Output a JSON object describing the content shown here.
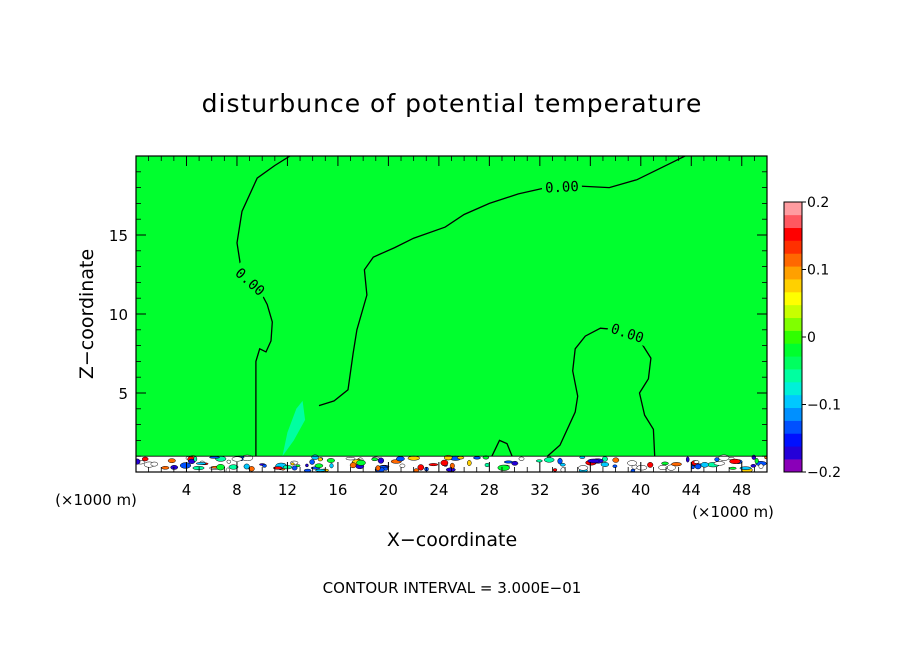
{
  "chart_data": {
    "type": "heatmap",
    "title": "disturbunce of potential temperature",
    "xlabel": "X−coordinate",
    "ylabel": "Z−coordinate",
    "x_unit": "(×1000 m)",
    "z_unit": "(×1000 m)",
    "xlim": [
      0,
      50
    ],
    "ylim": [
      0,
      20
    ],
    "x_ticks": [
      4,
      8,
      12,
      16,
      20,
      24,
      28,
      32,
      36,
      40,
      44,
      48
    ],
    "x_tick_labels": [
      "4",
      "8",
      "12",
      "16",
      "20",
      "24",
      "28",
      "32",
      "36",
      "40",
      "44",
      "48"
    ],
    "y_ticks": [
      5,
      10,
      15
    ],
    "y_tick_labels": [
      "5",
      "10",
      "15"
    ],
    "footer": "CONTOUR INTERVAL = 3.000E−01",
    "background_color": "#00ff2e",
    "colorbar": {
      "range": [
        -0.2,
        0.2
      ],
      "tick_values": [
        -0.2,
        -0.1,
        0,
        0.1,
        0.2
      ],
      "tick_labels": [
        "−0.2",
        "−0.1",
        "0",
        "0.1",
        "0.2"
      ],
      "colors": [
        "#8a00b8",
        "#2400d8",
        "#0010ff",
        "#0050ff",
        "#0090ff",
        "#00c8ff",
        "#00f0d8",
        "#00ffa0",
        "#00ff60",
        "#00ff2e",
        "#30ff00",
        "#80ff00",
        "#c8ff00",
        "#ffff00",
        "#ffd000",
        "#ffa000",
        "#ff6800",
        "#ff3000",
        "#ff0000",
        "#ff5860",
        "#ff9ca0"
      ]
    },
    "contours": [
      {
        "level": 0.0,
        "label": "0.00",
        "x": [
          9.5,
          9.5,
          9.8,
          10.3,
          10.7,
          10.8,
          10.4,
          10.0,
          9.4,
          8.7,
          8.3,
          8.0,
          8.4,
          9.6,
          11.0,
          12.2
        ],
        "y": [
          1.0,
          7.0,
          7.8,
          7.6,
          8.3,
          9.5,
          10.6,
          11.2,
          11.8,
          12.3,
          13.0,
          14.5,
          16.5,
          18.6,
          19.4,
          20.0
        ]
      },
      {
        "level": 0.0,
        "label": "0.00",
        "x": [
          14.5,
          15.7,
          16.8,
          17.2,
          17.5,
          18.3,
          18.1,
          18.8,
          20.5,
          22.0,
          24.5,
          26.0,
          28.0,
          30.3,
          32.5,
          35.0,
          37.5,
          39.7,
          42.5,
          43.5
        ],
        "y": [
          4.2,
          4.5,
          5.2,
          7.5,
          9.0,
          11.2,
          12.8,
          13.6,
          14.2,
          14.8,
          15.5,
          16.3,
          17.0,
          17.6,
          18.0,
          18.1,
          18.0,
          18.5,
          19.6,
          20.0
        ]
      },
      {
        "level": 0.0,
        "label": "0.00",
        "x": [
          32.6,
          33.6,
          34.8,
          35.0,
          34.6,
          34.8,
          35.6,
          36.8,
          38.2,
          39.7,
          40.8,
          40.6,
          39.9,
          40.3,
          41.0,
          41.1
        ],
        "y": [
          1.0,
          1.7,
          3.8,
          4.8,
          6.4,
          7.8,
          8.6,
          9.1,
          9.0,
          8.6,
          7.2,
          5.9,
          5.0,
          3.6,
          2.7,
          1.0
        ]
      },
      {
        "level": 0.0,
        "label": "",
        "x": [
          28.2,
          28.8,
          29.4,
          29.8
        ],
        "y": [
          1.0,
          2.0,
          1.8,
          1.0
        ]
      }
    ],
    "negative_features": [
      {
        "level": -0.02,
        "x": [
          11.4,
          11.8,
          12.6,
          13.6,
          14.5,
          14.8,
          14.2,
          12.9,
          11.6,
          11.2
        ],
        "y": [
          1.0,
          4.5,
          8.0,
          9.9,
          9.6,
          8.0,
          5.2,
          3.2,
          1.6,
          1.0
        ]
      },
      {
        "level": -0.06,
        "x": [
          11.6,
          12.0,
          12.7,
          13.2,
          13.4,
          12.5,
          11.6
        ],
        "y": [
          1.0,
          2.5,
          4.0,
          4.5,
          3.3,
          2.0,
          1.0
        ]
      }
    ],
    "surface_layer": {
      "z_top": 1.0,
      "note": "noisy multi-colored disturbances below z = 1"
    }
  }
}
